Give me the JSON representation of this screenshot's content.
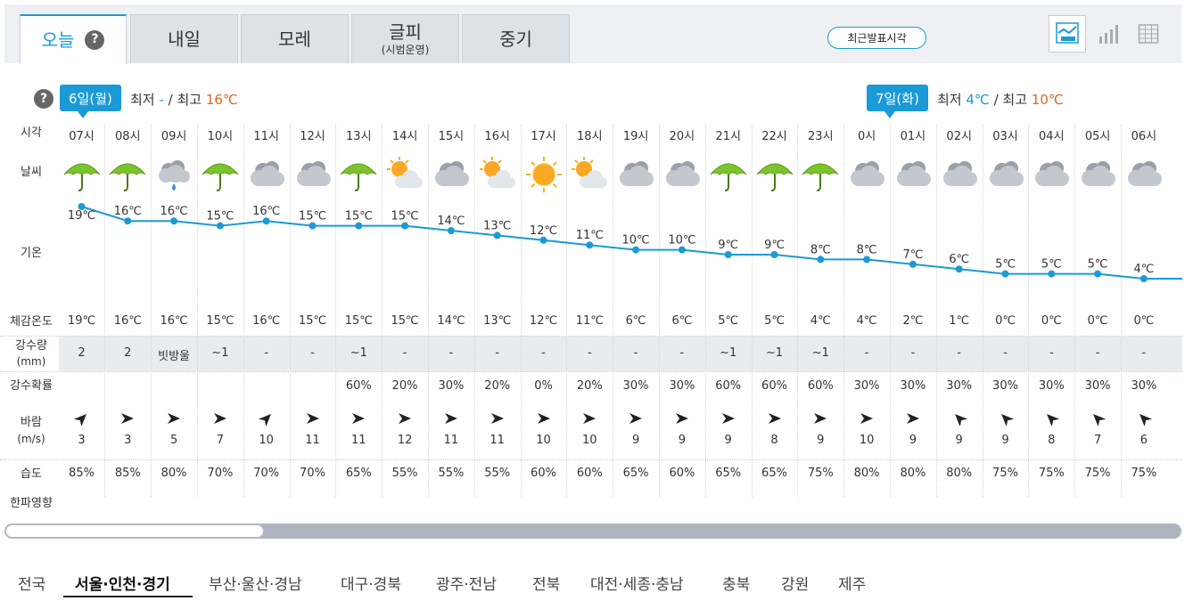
{
  "tabs": [
    {
      "label": "오늘",
      "active": true
    },
    {
      "label": "내일"
    },
    {
      "label": "모레"
    },
    {
      "label": "글피",
      "sub": "(시범운영)"
    },
    {
      "label": "중기"
    }
  ],
  "help_symbol": "?",
  "latest_button": "최근발표시각",
  "view_icons": [
    "line-chart-icon",
    "bar-chart-icon",
    "table-icon"
  ],
  "days": [
    {
      "badge": "6일(월)",
      "min_label": "최저",
      "min": "-",
      "sep": "/",
      "max_label": "최고",
      "max": "16℃"
    },
    {
      "badge": "7일(화)",
      "min_label": "최저",
      "min": "4℃",
      "sep": "/",
      "max_label": "최고",
      "max": "10℃"
    }
  ],
  "row_labels": {
    "time": "시각",
    "weather": "날씨",
    "temp": "기온",
    "feels": "체감온도",
    "rain_amount": "강수량",
    "rain_unit": "(mm)",
    "rain_prob": "강수확률",
    "wind": "바람",
    "wind_unit": "(m/s)",
    "humidity": "습도",
    "cold_wave": "한파영향"
  },
  "hours": [
    {
      "time": "07시",
      "icon": "rain",
      "temp": "19℃",
      "feels": "19℃",
      "rain": "2",
      "prob": "",
      "wind_dir": "NE",
      "wind": "3",
      "hum": "85%"
    },
    {
      "time": "08시",
      "icon": "rain",
      "temp": "16℃",
      "feels": "16℃",
      "rain": "2",
      "prob": "",
      "wind_dir": "E",
      "wind": "3",
      "hum": "85%"
    },
    {
      "time": "09시",
      "icon": "cloud-rain",
      "temp": "16℃",
      "feels": "16℃",
      "rain": "빗방울",
      "prob": "",
      "wind_dir": "E",
      "wind": "5",
      "hum": "80%"
    },
    {
      "time": "10시",
      "icon": "rain",
      "temp": "15℃",
      "feels": "15℃",
      "rain": "~1",
      "prob": "",
      "wind_dir": "E",
      "wind": "7",
      "hum": "70%"
    },
    {
      "time": "11시",
      "icon": "cloudy",
      "temp": "16℃",
      "feels": "16℃",
      "rain": "-",
      "prob": "",
      "wind_dir": "NE",
      "wind": "10",
      "hum": "70%"
    },
    {
      "time": "12시",
      "icon": "cloudy",
      "temp": "15℃",
      "feels": "15℃",
      "rain": "-",
      "prob": "",
      "wind_dir": "E",
      "wind": "11",
      "hum": "70%"
    },
    {
      "time": "13시",
      "icon": "rain",
      "temp": "15℃",
      "feels": "15℃",
      "rain": "~1",
      "prob": "60%",
      "wind_dir": "E",
      "wind": "11",
      "hum": "65%"
    },
    {
      "time": "14시",
      "icon": "sun-cloud",
      "temp": "15℃",
      "feels": "15℃",
      "rain": "-",
      "prob": "20%",
      "wind_dir": "E",
      "wind": "12",
      "hum": "55%"
    },
    {
      "time": "15시",
      "icon": "cloudy",
      "temp": "14℃",
      "feels": "14℃",
      "rain": "-",
      "prob": "30%",
      "wind_dir": "E",
      "wind": "11",
      "hum": "55%"
    },
    {
      "time": "16시",
      "icon": "sun-cloud",
      "temp": "13℃",
      "feels": "13℃",
      "rain": "-",
      "prob": "20%",
      "wind_dir": "E",
      "wind": "11",
      "hum": "55%"
    },
    {
      "time": "17시",
      "icon": "sunny",
      "temp": "12℃",
      "feels": "12℃",
      "rain": "-",
      "prob": "0%",
      "wind_dir": "E",
      "wind": "10",
      "hum": "60%"
    },
    {
      "time": "18시",
      "icon": "sun-cloud",
      "temp": "11℃",
      "feels": "11℃",
      "rain": "-",
      "prob": "20%",
      "wind_dir": "E",
      "wind": "10",
      "hum": "60%"
    },
    {
      "time": "19시",
      "icon": "cloudy",
      "temp": "10℃",
      "feels": "6℃",
      "rain": "-",
      "prob": "30%",
      "wind_dir": "E",
      "wind": "9",
      "hum": "65%"
    },
    {
      "time": "20시",
      "icon": "cloudy",
      "temp": "10℃",
      "feels": "6℃",
      "rain": "-",
      "prob": "30%",
      "wind_dir": "E",
      "wind": "9",
      "hum": "60%"
    },
    {
      "time": "21시",
      "icon": "rain",
      "temp": "9℃",
      "feels": "5℃",
      "rain": "~1",
      "prob": "60%",
      "wind_dir": "E",
      "wind": "9",
      "hum": "65%"
    },
    {
      "time": "22시",
      "icon": "rain",
      "temp": "9℃",
      "feels": "5℃",
      "rain": "~1",
      "prob": "60%",
      "wind_dir": "E",
      "wind": "8",
      "hum": "65%"
    },
    {
      "time": "23시",
      "icon": "rain",
      "temp": "8℃",
      "feels": "4℃",
      "rain": "~1",
      "prob": "60%",
      "wind_dir": "E",
      "wind": "9",
      "hum": "75%"
    },
    {
      "time": "0시",
      "icon": "cloudy",
      "temp": "8℃",
      "feels": "4℃",
      "rain": "-",
      "prob": "30%",
      "wind_dir": "E",
      "wind": "10",
      "hum": "80%"
    },
    {
      "time": "01시",
      "icon": "cloudy",
      "temp": "7℃",
      "feels": "2℃",
      "rain": "-",
      "prob": "30%",
      "wind_dir": "E",
      "wind": "9",
      "hum": "80%"
    },
    {
      "time": "02시",
      "icon": "cloudy",
      "temp": "6℃",
      "feels": "1℃",
      "rain": "-",
      "prob": "30%",
      "wind_dir": "NW",
      "wind": "9",
      "hum": "80%"
    },
    {
      "time": "03시",
      "icon": "cloudy",
      "temp": "5℃",
      "feels": "0℃",
      "rain": "-",
      "prob": "30%",
      "wind_dir": "NW",
      "wind": "9",
      "hum": "75%"
    },
    {
      "time": "04시",
      "icon": "cloudy",
      "temp": "5℃",
      "feels": "0℃",
      "rain": "-",
      "prob": "30%",
      "wind_dir": "NW",
      "wind": "8",
      "hum": "75%"
    },
    {
      "time": "05시",
      "icon": "cloudy",
      "temp": "5℃",
      "feels": "0℃",
      "rain": "-",
      "prob": "30%",
      "wind_dir": "NW",
      "wind": "7",
      "hum": "75%"
    },
    {
      "time": "06시",
      "icon": "cloudy",
      "temp": "4℃",
      "feels": "0℃",
      "rain": "-",
      "prob": "30%",
      "wind_dir": "NW",
      "wind": "6",
      "hum": "75%"
    }
  ],
  "temperature_series": [
    19,
    16,
    16,
    15,
    16,
    15,
    15,
    15,
    14,
    13,
    12,
    11,
    10,
    10,
    9,
    9,
    8,
    8,
    7,
    6,
    5,
    5,
    5,
    4
  ],
  "scrollbar_position": 0.0,
  "regions": [
    "전국",
    "서울·인천·경기",
    "부산·울산·경남",
    "대구·경북",
    "광주·전남",
    "전북",
    "대전·세종·충남",
    "충북",
    "강원",
    "제주"
  ],
  "active_region": "서울·인천·경기",
  "colors": {
    "accent": "#1a9ad6",
    "max_temp": "#e0681f",
    "graph_line": "#1a9ad6"
  }
}
